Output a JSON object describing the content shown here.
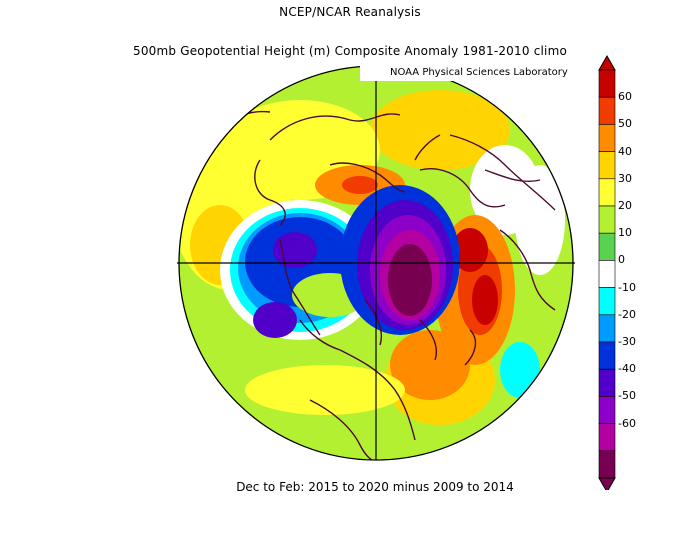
{
  "header": {
    "line1": "NCEP/NCAR Reanalysis",
    "line2": "500mb Geopotential Height (m) Composite Anomaly 1981-2010 climo"
  },
  "credit": "NOAA Physical Sciences Laboratory",
  "footer": "Dec to Feb: 2015 to 2020 minus 2009 to 2014",
  "colorbar": {
    "labels": [
      "60",
      "50",
      "40",
      "30",
      "20",
      "10",
      "0",
      "-10",
      "-20",
      "-30",
      "-40",
      "-50",
      "-60"
    ],
    "colors": [
      "#c80000",
      "#f03c00",
      "#ff8c00",
      "#ffd400",
      "#ffff32",
      "#b4f032",
      "#5ad250",
      "#ffffff",
      "#00ffff",
      "#009bff",
      "#0032dc",
      "#5000c8",
      "#8c00c8",
      "#b400a0",
      "#780050"
    ]
  },
  "colors": {
    "background": "#ffffff",
    "coast": "#4b0a32"
  }
}
